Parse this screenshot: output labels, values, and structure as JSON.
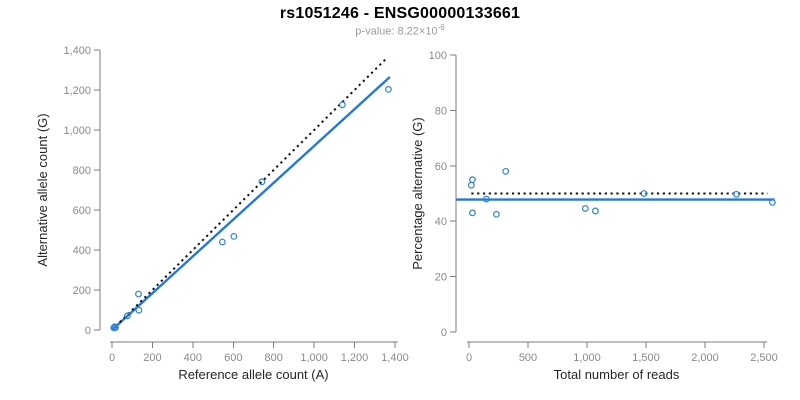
{
  "header": {
    "title": "rs1051246 - ENSG00000133661",
    "subtitle_base": "p-value: 8.22×10",
    "subtitle_exp": "-6"
  },
  "colors": {
    "line_blue": "#2279d8",
    "line_dotted": "#111111",
    "point_blue": "#2e84d8",
    "tick_label_gray": "#8a8a8a",
    "axis_gray": "#7d7d7d",
    "label_dark": "#262626"
  },
  "chart_data": [
    {
      "type": "scatter",
      "panel": "left",
      "xlabel": "Reference allele count (A)",
      "ylabel": "Alternative allele count (G)",
      "xlim": [
        0,
        1400
      ],
      "ylim": [
        0,
        1400
      ],
      "grid": false,
      "legend": "none",
      "xticks": [
        0,
        200,
        400,
        600,
        800,
        1000,
        1200,
        1400
      ],
      "xtick_labels": [
        "0",
        "200",
        "400",
        "600",
        "800",
        "1,000",
        "1,200",
        "1,400"
      ],
      "yticks": [
        0,
        200,
        400,
        600,
        800,
        1000,
        1200,
        1400
      ],
      "ytick_labels": [
        "0",
        "200",
        "400",
        "600",
        "800",
        "1,000",
        "1,200",
        "1,400"
      ],
      "points": [
        [
          9,
          11
        ],
        [
          13,
          16
        ],
        [
          17,
          12
        ],
        [
          76,
          71
        ],
        [
          133,
          99
        ],
        [
          131,
          180
        ],
        [
          546,
          440
        ],
        [
          603,
          468
        ],
        [
          742,
          741
        ],
        [
          1140,
          1126
        ],
        [
          1368,
          1203
        ]
      ],
      "lines": [
        {
          "name": "fitted-line",
          "style": "solid",
          "color_key": "line_blue",
          "from": [
            0,
            0
          ],
          "to": [
            1375,
            1265
          ],
          "extend_left": false
        },
        {
          "name": "identity-line",
          "style": "dotted",
          "color_key": "line_dotted",
          "from": [
            18,
            18
          ],
          "to": [
            1362,
            1362
          ],
          "extend_left": false
        }
      ]
    },
    {
      "type": "scatter",
      "panel": "right",
      "xlabel": "Total number of reads",
      "ylabel": "Percentage alternative (G)",
      "xlim": [
        0,
        2600
      ],
      "ylim": [
        0,
        100
      ],
      "grid": false,
      "legend": "none",
      "xticks": [
        0,
        500,
        1000,
        1500,
        2000,
        2500
      ],
      "xtick_labels": [
        "0",
        "500",
        "1,000",
        "1,500",
        "2,000",
        "2,500"
      ],
      "yticks": [
        0,
        20,
        40,
        60,
        80,
        100
      ],
      "ytick_labels": [
        "0",
        "20",
        "40",
        "60",
        "80",
        "100"
      ],
      "points": [
        [
          20,
          53
        ],
        [
          29,
          55
        ],
        [
          29,
          43
        ],
        [
          147,
          48
        ],
        [
          232,
          42.5
        ],
        [
          311,
          58
        ],
        [
          986,
          44.6
        ],
        [
          1071,
          43.7
        ],
        [
          1483,
          50
        ],
        [
          2266,
          49.7
        ],
        [
          2571,
          46.8
        ]
      ],
      "lines": [
        {
          "name": "fitted-line",
          "style": "solid",
          "color_key": "line_blue",
          "from": [
            0,
            47.8
          ],
          "to": [
            2590,
            47.8
          ],
          "extend_left": true
        },
        {
          "name": "fifty-percent-line",
          "style": "dotted",
          "color_key": "line_dotted",
          "from": [
            20,
            50
          ],
          "to": [
            2530,
            50
          ],
          "extend_left": false
        }
      ]
    }
  ]
}
